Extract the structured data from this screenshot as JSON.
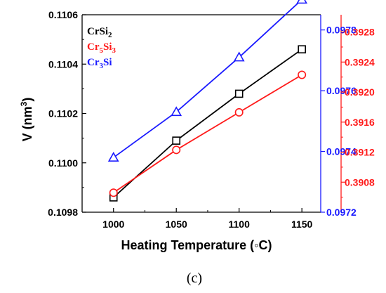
{
  "chart_data": {
    "type": "line",
    "x": [
      1000,
      1050,
      1100,
      1150
    ],
    "xlabel": "Heating Temperature (◦C)",
    "ylabel": "V (nm3)",
    "xlim": [
      975,
      1165
    ],
    "xticks": [
      "1000",
      "1050",
      "1100",
      "1150"
    ],
    "axes": {
      "left": {
        "ylim": [
          0.1098,
          0.1106
        ],
        "ticks": [
          "0.1098",
          "0.1100",
          "0.1102",
          "0.1104",
          "0.1106"
        ],
        "color": "#000000"
      },
      "right_blue": {
        "ylim": [
          0.0972,
          0.09785
        ],
        "ticks": [
          "0.0972",
          "0.0974",
          "0.0976",
          "0.0978"
        ],
        "color": "#1a1aff"
      },
      "right_red": {
        "ylim": [
          0.3904,
          0.39303
        ],
        "ticks": [
          "0.3908",
          "0.3912",
          "0.3916",
          "0.3920",
          "0.3924",
          "0.3928"
        ],
        "color": "#ff1a1a"
      }
    },
    "series": [
      {
        "name": "CrSi2",
        "axis": "left",
        "color": "#000000",
        "marker": "square",
        "values": [
          0.10986,
          0.11009,
          0.11028,
          0.11046
        ]
      },
      {
        "name": "Cr5Si3",
        "axis": "right_red",
        "color": "#ff1a1a",
        "marker": "circle",
        "values": [
          0.39066,
          0.39123,
          0.39173,
          0.39223
        ]
      },
      {
        "name": "Cr3Si",
        "axis": "right_blue",
        "color": "#1a1aff",
        "marker": "triangle",
        "values": [
          0.09738,
          0.09753,
          0.09771,
          0.0979
        ]
      }
    ],
    "legend": [
      {
        "base": "CrSi",
        "sub": "2",
        "tail": "",
        "color": "#000000"
      },
      {
        "base": "Cr",
        "sub": "5",
        "tail": "Si",
        "sub2": "3",
        "color": "#ff1a1a"
      },
      {
        "base": "Cr",
        "sub": "3",
        "tail": "Si",
        "sub2": "",
        "color": "#1a1aff"
      }
    ],
    "legend_position": "top-left",
    "grid": false
  },
  "caption": "(c)"
}
